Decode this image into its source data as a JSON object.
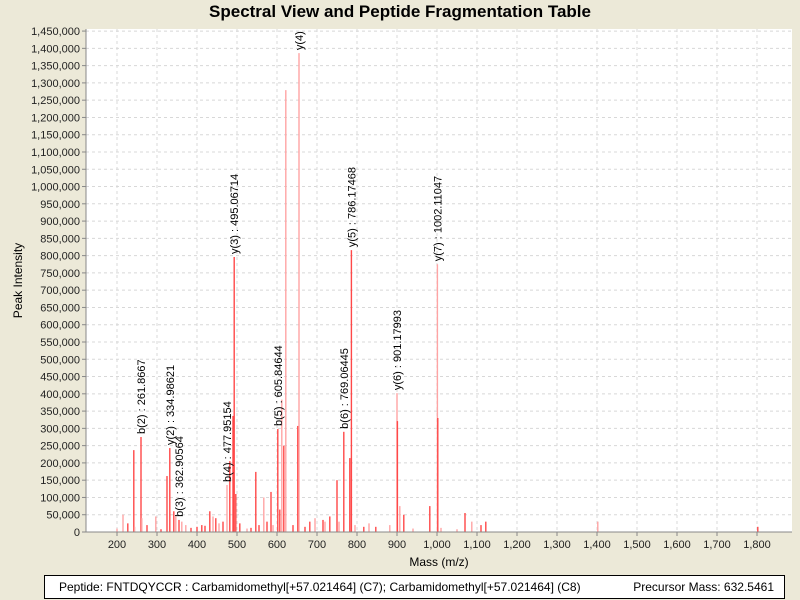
{
  "chart_data": {
    "type": "bar",
    "title": "Spectral View and Peptide Fragmentation Table",
    "xlabel": "Mass (m/z)",
    "ylabel": "Peak Intensity",
    "xlim": [
      122.5,
      1887.5
    ],
    "ylim": [
      0,
      1456000
    ],
    "xticks": [
      200,
      300,
      400,
      500,
      600,
      700,
      800,
      900,
      1000,
      1100,
      1200,
      1300,
      1400,
      1500,
      1600,
      1700,
      1800
    ],
    "xtick_labels": [
      "200",
      "300",
      "400",
      "500",
      "600",
      "700",
      "800",
      "900",
      "1,000",
      "1,100",
      "1,200",
      "1,300",
      "1,400",
      "1,500",
      "1,600",
      "1,700",
      "1,800"
    ],
    "yticks": [
      0,
      50000,
      100000,
      150000,
      200000,
      250000,
      300000,
      350000,
      400000,
      450000,
      500000,
      550000,
      600000,
      650000,
      700000,
      750000,
      800000,
      850000,
      900000,
      950000,
      1000000,
      1050000,
      1100000,
      1150000,
      1200000,
      1250000,
      1300000,
      1350000,
      1400000,
      1450000
    ],
    "ytick_labels": [
      "0",
      "50,000",
      "100,000",
      "150,000",
      "200,000",
      "250,000",
      "300,000",
      "350,000",
      "400,000",
      "450,000",
      "500,000",
      "550,000",
      "600,000",
      "650,000",
      "700,000",
      "750,000",
      "800,000",
      "850,000",
      "900,000",
      "950,000",
      "1,000,000",
      "1,050,000",
      "1,100,000",
      "1,150,000",
      "1,200,000",
      "1,250,000",
      "1,300,000",
      "1,350,000",
      "1,400,000",
      "1,450,000"
    ],
    "grid": true,
    "peaks": [
      {
        "mz": 200,
        "intensity": 10000,
        "faint": true
      },
      {
        "mz": 215,
        "intensity": 50000,
        "faint": true
      },
      {
        "mz": 227,
        "intensity": 25000,
        "faint": false
      },
      {
        "mz": 242,
        "intensity": 237000,
        "faint": false
      },
      {
        "mz": 244,
        "intensity": 15000,
        "faint": true
      },
      {
        "mz": 260,
        "intensity": 275000,
        "faint": false
      },
      {
        "mz": 262,
        "intensity": 40000,
        "faint": true
      },
      {
        "mz": 275,
        "intensity": 20000,
        "faint": false
      },
      {
        "mz": 297,
        "intensity": 45000,
        "faint": true
      },
      {
        "mz": 310,
        "intensity": 8000,
        "faint": false
      },
      {
        "mz": 325,
        "intensity": 162000,
        "faint": false
      },
      {
        "mz": 332,
        "intensity": 243000,
        "faint": false
      },
      {
        "mz": 342,
        "intensity": 60000,
        "faint": false
      },
      {
        "mz": 347,
        "intensity": 45000,
        "faint": true
      },
      {
        "mz": 355,
        "intensity": 35000,
        "faint": false
      },
      {
        "mz": 362,
        "intensity": 30000,
        "faint": true
      },
      {
        "mz": 372,
        "intensity": 20000,
        "faint": true
      },
      {
        "mz": 385,
        "intensity": 12000,
        "faint": false
      },
      {
        "mz": 400,
        "intensity": 15000,
        "faint": false
      },
      {
        "mz": 412,
        "intensity": 20000,
        "faint": false
      },
      {
        "mz": 420,
        "intensity": 18000,
        "faint": false
      },
      {
        "mz": 432,
        "intensity": 60000,
        "faint": false
      },
      {
        "mz": 440,
        "intensity": 45000,
        "faint": true
      },
      {
        "mz": 447,
        "intensity": 40000,
        "faint": false
      },
      {
        "mz": 455,
        "intensity": 25000,
        "faint": true
      },
      {
        "mz": 465,
        "intensity": 30000,
        "faint": false
      },
      {
        "mz": 475,
        "intensity": 136000,
        "faint": true
      },
      {
        "mz": 482,
        "intensity": 205000,
        "faint": false
      },
      {
        "mz": 490,
        "intensity": 336000,
        "faint": false
      },
      {
        "mz": 493,
        "intensity": 796000,
        "faint": false
      },
      {
        "mz": 497,
        "intensity": 110000,
        "faint": false
      },
      {
        "mz": 507,
        "intensity": 25000,
        "faint": false
      },
      {
        "mz": 525,
        "intensity": 10000,
        "faint": true
      },
      {
        "mz": 535,
        "intensity": 12000,
        "faint": false
      },
      {
        "mz": 547,
        "intensity": 174000,
        "faint": false
      },
      {
        "mz": 555,
        "intensity": 20000,
        "faint": false
      },
      {
        "mz": 567,
        "intensity": 100000,
        "faint": true
      },
      {
        "mz": 575,
        "intensity": 30000,
        "faint": false
      },
      {
        "mz": 585,
        "intensity": 116000,
        "faint": false
      },
      {
        "mz": 590,
        "intensity": 20000,
        "faint": true
      },
      {
        "mz": 602,
        "intensity": 298000,
        "faint": false
      },
      {
        "mz": 607,
        "intensity": 65000,
        "faint": false
      },
      {
        "mz": 612,
        "intensity": 383000,
        "faint": true
      },
      {
        "mz": 617,
        "intensity": 250000,
        "faint": false
      },
      {
        "mz": 622,
        "intensity": 1279000,
        "faint": true
      },
      {
        "mz": 640,
        "intensity": 20000,
        "faint": false
      },
      {
        "mz": 652,
        "intensity": 307000,
        "faint": false
      },
      {
        "mz": 655,
        "intensity": 1386000,
        "faint": true
      },
      {
        "mz": 670,
        "intensity": 15000,
        "faint": false
      },
      {
        "mz": 682,
        "intensity": 30000,
        "faint": false
      },
      {
        "mz": 695,
        "intensity": 40000,
        "faint": true
      },
      {
        "mz": 715,
        "intensity": 35000,
        "faint": false
      },
      {
        "mz": 720,
        "intensity": 30000,
        "faint": true
      },
      {
        "mz": 732,
        "intensity": 45000,
        "faint": false
      },
      {
        "mz": 750,
        "intensity": 150000,
        "faint": false
      },
      {
        "mz": 755,
        "intensity": 30000,
        "faint": true
      },
      {
        "mz": 767,
        "intensity": 290000,
        "faint": false
      },
      {
        "mz": 782,
        "intensity": 214000,
        "faint": false
      },
      {
        "mz": 786,
        "intensity": 816000,
        "faint": false
      },
      {
        "mz": 795,
        "intensity": 20000,
        "faint": true
      },
      {
        "mz": 817,
        "intensity": 15000,
        "faint": false
      },
      {
        "mz": 830,
        "intensity": 25000,
        "faint": true
      },
      {
        "mz": 847,
        "intensity": 15000,
        "faint": false
      },
      {
        "mz": 882,
        "intensity": 20000,
        "faint": true
      },
      {
        "mz": 900,
        "intensity": 402000,
        "faint": true
      },
      {
        "mz": 901,
        "intensity": 321000,
        "faint": false
      },
      {
        "mz": 907,
        "intensity": 75000,
        "faint": true
      },
      {
        "mz": 917,
        "intensity": 50000,
        "faint": false
      },
      {
        "mz": 940,
        "intensity": 10000,
        "faint": true
      },
      {
        "mz": 982,
        "intensity": 75000,
        "faint": false
      },
      {
        "mz": 1001,
        "intensity": 775000,
        "faint": true
      },
      {
        "mz": 1002,
        "intensity": 330000,
        "faint": false
      },
      {
        "mz": 1010,
        "intensity": 12000,
        "faint": true
      },
      {
        "mz": 1050,
        "intensity": 8000,
        "faint": true
      },
      {
        "mz": 1070,
        "intensity": 55000,
        "faint": false
      },
      {
        "mz": 1087,
        "intensity": 30000,
        "faint": true
      },
      {
        "mz": 1110,
        "intensity": 20000,
        "faint": false
      },
      {
        "mz": 1122,
        "intensity": 30000,
        "faint": false
      },
      {
        "mz": 1402,
        "intensity": 30000,
        "faint": true
      },
      {
        "mz": 1802,
        "intensity": 15000,
        "faint": false
      }
    ],
    "annotations": [
      {
        "label": "b(2) : 261.8667",
        "mz": 260,
        "intensity": 275000
      },
      {
        "label": "y(2) : 334.98621",
        "mz": 332,
        "intensity": 243000
      },
      {
        "label": "b(3) : 362.90564",
        "mz": 355,
        "intensity": 35000
      },
      {
        "label": "b(4) : 477.95154",
        "mz": 475,
        "intensity": 136000
      },
      {
        "label": "y(3) : 495.06714",
        "mz": 493,
        "intensity": 796000
      },
      {
        "label": "b(5) : 605.84644",
        "mz": 602,
        "intensity": 298000
      },
      {
        "label": "y(4)",
        "mz": 655,
        "intensity": 1386000
      },
      {
        "label": "b(6) : 769.06445",
        "mz": 767,
        "intensity": 290000
      },
      {
        "label": "y(5) : 786.17468",
        "mz": 786,
        "intensity": 816000
      },
      {
        "label": "y(6) : 901.17993",
        "mz": 900,
        "intensity": 402000
      },
      {
        "label": "y(7) : 1002.11047",
        "mz": 1001,
        "intensity": 775000
      }
    ],
    "colors": {
      "peak": "#ff4848",
      "peak_faint": "#ffa4a4",
      "grid": "#d8d8d8",
      "axis": "#888888",
      "background": "#ece9d8"
    }
  },
  "footer": {
    "peptide": "Peptide: FNTDQYCCR : Carbamidomethyl[+57.021464] (C7); Carbamidomethyl[+57.021464] (C8)",
    "precursor": "Precursor Mass: 632.5461"
  }
}
